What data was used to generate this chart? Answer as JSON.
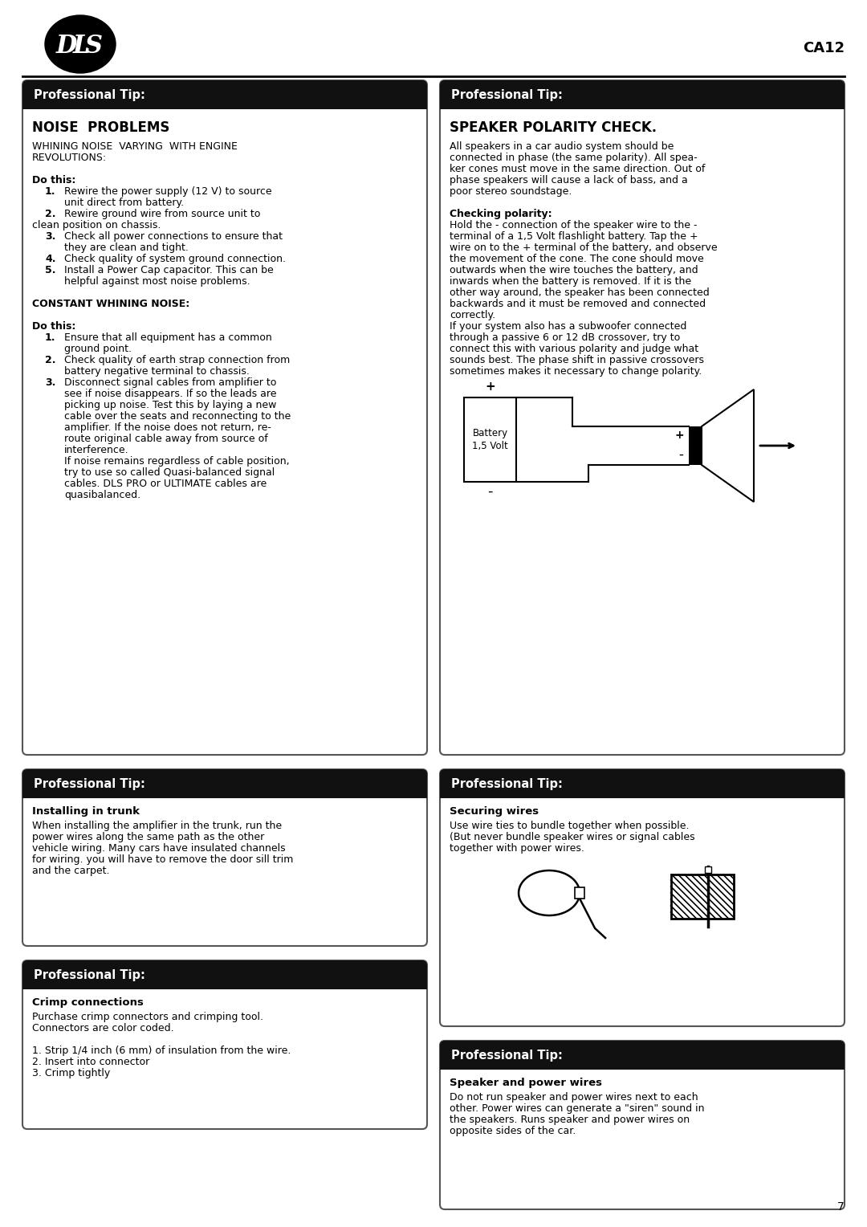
{
  "page_title": "CA12",
  "page_number": "7",
  "background_color": "#ffffff",
  "header_bg": "#111111",
  "header_text_color": "#ffffff",
  "header_label": "Professional Tip:",
  "box_border_color": "#555555",
  "text_color": "#000000",
  "box1_title": "NOISE  PROBLEMS",
  "box2_title": "SPEAKER POLARITY CHECK.",
  "box3_title": "Installing in trunk",
  "box4_title": "Securing wires",
  "box5_title": "Crimp connections",
  "box6_title": "Speaker and power wires",
  "box1_lines": [
    [
      "WHINING NOISE  VARYING  WITH ENGINE",
      false
    ],
    [
      "REVOLUTIONS:",
      false
    ],
    [
      "",
      false
    ],
    [
      "Do this:",
      true
    ],
    [
      "1.",
      true,
      "Rewire the power supply (12 V) to source"
    ],
    [
      "",
      false,
      "unit direct from battery."
    ],
    [
      "2.",
      true,
      "Rewire ground wire from source unit to"
    ],
    [
      "clean position on chassis.",
      false
    ],
    [
      "3.",
      true,
      "Check all power connections to ensure that"
    ],
    [
      "",
      false,
      "they are clean and tight."
    ],
    [
      "4.",
      true,
      "Check quality of system ground connection."
    ],
    [
      "5.",
      true,
      "Install a Power Cap capacitor. This can be"
    ],
    [
      "",
      false,
      "helpful against most noise problems."
    ],
    [
      "",
      false
    ],
    [
      "CONSTANT WHINING NOISE:",
      true
    ],
    [
      "",
      false
    ],
    [
      "Do this:",
      true
    ],
    [
      "1.",
      true,
      "Ensure that all equipment has a common"
    ],
    [
      "",
      false,
      "ground point."
    ],
    [
      "2.",
      true,
      "Check quality of earth strap connection from"
    ],
    [
      "",
      false,
      "battery negative terminal to chassis."
    ],
    [
      "3.",
      true,
      "Disconnect signal cables from amplifier to"
    ],
    [
      "",
      false,
      "see if noise disappears. If so the leads are"
    ],
    [
      "",
      false,
      "picking up noise. Test this by laying a new"
    ],
    [
      "",
      false,
      "cable over the seats and reconnecting to the"
    ],
    [
      "",
      false,
      "amplifier. If the noise does not return, re-"
    ],
    [
      "",
      false,
      "route original cable away from source of"
    ],
    [
      "",
      false,
      "interference."
    ],
    [
      "",
      false,
      "If noise remains regardless of cable position,"
    ],
    [
      "",
      false,
      "try to use so called Quasi-balanced signal"
    ],
    [
      "",
      false,
      "cables. DLS PRO or ULTIMATE cables are"
    ],
    [
      "",
      false,
      "quasibalanced."
    ]
  ],
  "box2_lines": [
    [
      "All speakers in a car audio system should be",
      false
    ],
    [
      "connected in phase (the same polarity). All spea-",
      false
    ],
    [
      "ker cones must move in the same direction. Out of",
      false
    ],
    [
      "phase speakers will cause a lack of bass, and a",
      false
    ],
    [
      "poor stereo soundstage.",
      false
    ],
    [
      "",
      false
    ],
    [
      "Checking polarity:",
      true
    ],
    [
      "Hold the - connection of the speaker wire to the -",
      false
    ],
    [
      "terminal of a 1,5 Volt flashlight battery. Tap the +",
      false
    ],
    [
      "wire on to the + terminal of the battery, and observe",
      false
    ],
    [
      "the movement of the cone. The cone should move",
      false
    ],
    [
      "outwards when the wire touches the battery, and",
      false
    ],
    [
      "inwards when the battery is removed. If it is the",
      false
    ],
    [
      "other way around, the speaker has been connected",
      false
    ],
    [
      "backwards and it must be removed and connected",
      false
    ],
    [
      "correctly.",
      false
    ],
    [
      "If your system also has a subwoofer connected",
      false
    ],
    [
      "through a passive 6 or 12 dB crossover, try to",
      false
    ],
    [
      "connect this with various polarity and judge what",
      false
    ],
    [
      "sounds best. The phase shift in passive crossovers",
      false
    ],
    [
      "sometimes makes it necessary to change polarity.",
      false
    ]
  ],
  "box3_lines": [
    [
      "When installing the amplifier in the trunk, run the",
      false
    ],
    [
      "power wires along the same path as the other",
      false
    ],
    [
      "vehicle wiring. Many cars have insulated channels",
      false
    ],
    [
      "for wiring. you will have to remove the door sill trim",
      false
    ],
    [
      "and the carpet.",
      false
    ]
  ],
  "box4_lines": [
    [
      "Use wire ties to bundle together when possible.",
      false
    ],
    [
      "(But never bundle speaker wires or signal cables",
      false
    ],
    [
      "together with power wires.",
      false
    ]
  ],
  "box5_lines": [
    [
      "Purchase crimp connectors and crimping tool.",
      false
    ],
    [
      "Connectors are color coded.",
      false
    ],
    [
      "",
      false
    ],
    [
      "1. Strip 1/4 inch (6 mm) of insulation from the wire.",
      false
    ],
    [
      "2. Insert into connector",
      false
    ],
    [
      "3. Crimp tightly",
      false
    ]
  ],
  "box6_lines": [
    [
      "Do not run speaker and power wires next to each",
      false
    ],
    [
      "other. Power wires can generate a \"siren\" sound in",
      false
    ],
    [
      "the speakers. Runs speaker and power wires on",
      false
    ],
    [
      "opposite sides of the car.",
      false
    ]
  ]
}
